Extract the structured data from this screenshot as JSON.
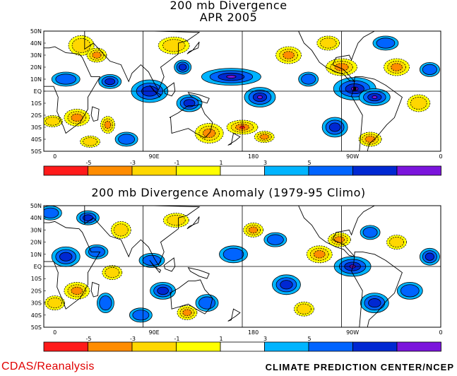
{
  "map1": {
    "title_line1": "200 mb Divergence",
    "title_line2": "APR 2005"
  },
  "map2": {
    "title": "200 mb Divergence Anomaly (1979-95 Climo)"
  },
  "lat_labels": [
    "50N",
    "40N",
    "30N",
    "20N",
    "10N",
    "EQ",
    "10S",
    "20S",
    "30S",
    "40S",
    "50S"
  ],
  "lon_labels": [
    "0",
    "90E",
    "180",
    "90W",
    "0"
  ],
  "colorbar": {
    "colors": [
      "#ff1a1a",
      "#ff8c00",
      "#ffd700",
      "#ffff00",
      "#ffffff",
      "#00b4ff",
      "#0064ff",
      "#0028d2",
      "#7b14dc"
    ],
    "tick_labels": [
      "-5",
      "-3",
      "-1",
      "1",
      "3",
      "5"
    ]
  },
  "footer": {
    "left": "CDAS/Reanalysis",
    "right": "CLIMATE PREDICTION CENTER/NCEP"
  }
}
